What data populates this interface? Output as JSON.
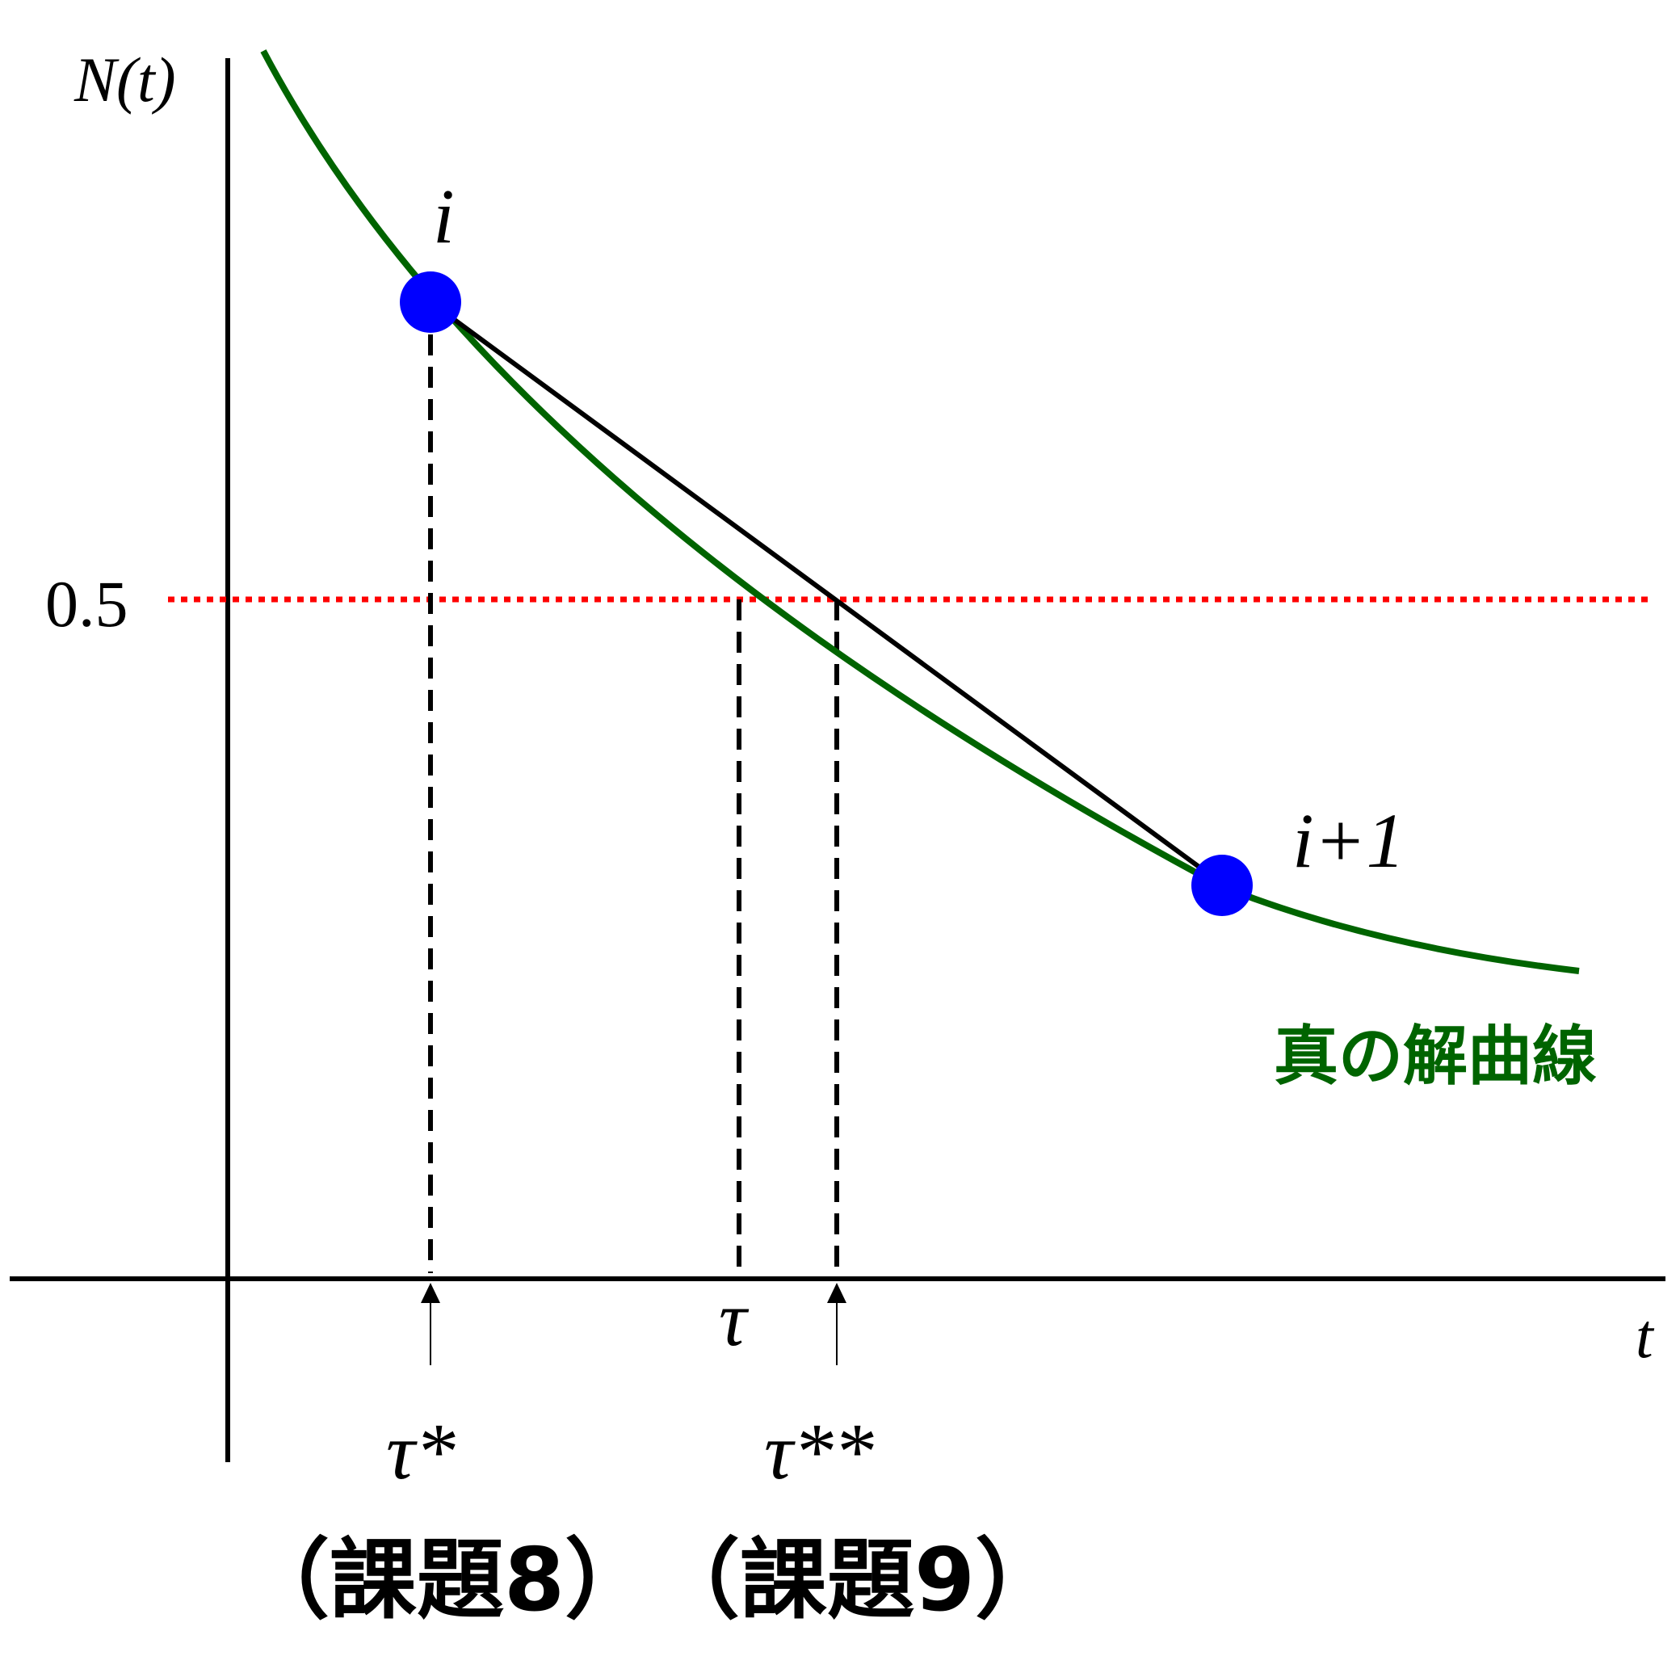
{
  "diagram": {
    "y_axis_label": "N(t)",
    "x_axis_label": "t",
    "level_label": "0.5",
    "point_i_label": "i",
    "point_i1_label": "i+1",
    "tau_label": "τ",
    "tau_star_label": "τ*",
    "tau_star_star_label": "τ**",
    "curve_label": "真の解曲線",
    "task8_label": "（課題8）",
    "task9_label": "（課題9）"
  },
  "colors": {
    "curve": "#006400",
    "points": "#0000ff",
    "reference_line": "#ff0000",
    "axes": "#000000"
  }
}
